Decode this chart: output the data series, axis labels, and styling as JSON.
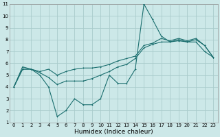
{
  "title": "",
  "xlabel": "Humidex (Indice chaleur)",
  "background_color": "#cce8e8",
  "grid_color": "#aacccc",
  "line_color": "#1a6e6e",
  "xlim": [
    -0.5,
    23.5
  ],
  "ylim": [
    1,
    11
  ],
  "yticks": [
    1,
    2,
    3,
    4,
    5,
    6,
    7,
    8,
    9,
    10,
    11
  ],
  "xticks": [
    0,
    1,
    2,
    3,
    4,
    5,
    6,
    7,
    8,
    9,
    10,
    11,
    12,
    13,
    14,
    15,
    16,
    17,
    18,
    19,
    20,
    21,
    22,
    23
  ],
  "line_low": [
    4,
    5.5,
    5.5,
    5.0,
    4.0,
    1.5,
    2.0,
    3.0,
    2.5,
    2.5,
    3.0,
    5.0,
    4.3,
    4.3,
    5.5,
    11.0,
    9.7,
    8.3,
    7.8,
    8.0,
    7.8,
    7.8,
    7.0,
    6.5
  ],
  "line_mid": [
    4,
    5.7,
    5.5,
    5.2,
    4.8,
    4.2,
    4.5,
    4.5,
    4.5,
    4.7,
    5.0,
    5.3,
    5.7,
    5.9,
    6.4,
    7.3,
    7.6,
    7.8,
    7.8,
    7.9,
    7.8,
    8.0,
    7.5,
    6.5
  ],
  "line_high": [
    4,
    5.5,
    5.5,
    5.3,
    5.5,
    5.0,
    5.3,
    5.5,
    5.6,
    5.6,
    5.7,
    5.9,
    6.2,
    6.4,
    6.6,
    7.5,
    7.7,
    8.1,
    7.9,
    8.1,
    7.9,
    8.1,
    7.5,
    6.5
  ],
  "label_fontsize": 5.5,
  "tick_fontsize": 5.0,
  "xlabel_fontsize": 6.5
}
